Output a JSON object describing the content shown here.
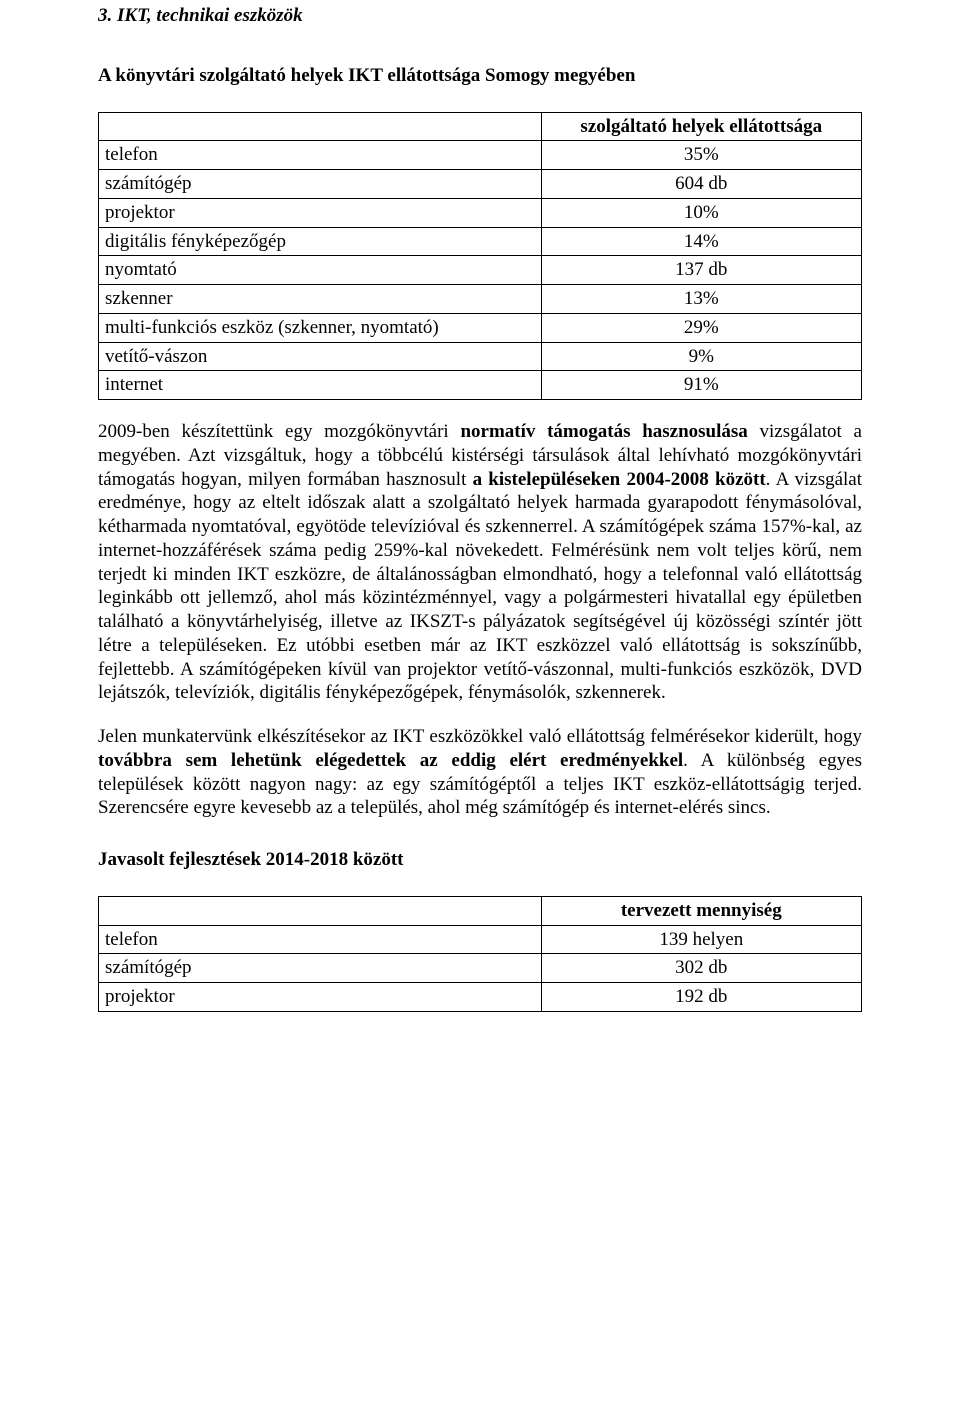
{
  "section": {
    "number": "3.",
    "title": "IKT, technikai eszközök"
  },
  "subhead1": "A könyvtári szolgáltató helyek IKT ellátottsága Somogy megyében",
  "table1": {
    "header_blank": "",
    "header_value": "szolgáltató helyek ellátottsága",
    "rows": [
      {
        "label": "telefon",
        "value": "35%"
      },
      {
        "label": "számítógép",
        "value": "604 db"
      },
      {
        "label": "projektor",
        "value": "10%"
      },
      {
        "label": "digitális fényképezőgép",
        "value": "14%"
      },
      {
        "label": "nyomtató",
        "value": "137 db"
      },
      {
        "label": "szkenner",
        "value": "13%"
      },
      {
        "label": "multi-funkciós eszköz (szkenner, nyomtató)",
        "value": "29%"
      },
      {
        "label": "vetítő-vászon",
        "value": "9%"
      },
      {
        "label": "internet",
        "value": "91%"
      }
    ]
  },
  "para1": {
    "t1": "2009-ben készítettünk egy mozgókönyvtári ",
    "b1": "normatív támogatás hasznosulása",
    "t2": " vizsgálatot a megyében. Azt vizsgáltuk, hogy a többcélú kistérségi társulások által lehívható mozgókönyvtári támogatás hogyan, milyen formában hasznosult ",
    "b2": "a kistelepüléseken 2004-2008 között",
    "t3": ". A vizsgálat eredménye, hogy az eltelt időszak alatt a szolgáltató helyek harmada gyarapodott fénymásolóval, kétharmada nyomtatóval, egyötöde televízióval és szkennerrel. A számítógépek száma 157%-kal, az internet-hozzáférések száma pedig 259%-kal növekedett. Felmérésünk nem volt teljes körű, nem terjedt ki minden IKT eszközre, de általánosságban elmondható, hogy a telefonnal való ellátottság leginkább ott jellemző, ahol más közintézménnyel, vagy a polgármesteri hivatallal egy épületben található a könyvtárhelyiség, illetve az IKSZT-s pályázatok segítségével új közösségi színtér jött létre a településeken. Ez utóbbi esetben már az IKT eszközzel való ellátottság is sokszínűbb, fejlettebb. A számítógépeken kívül van projektor vetítő-vászonnal, multi-funkciós eszközök, DVD lejátszók, televíziók, digitális fényképezőgépek, fénymásolók, szkennerek."
  },
  "para2": {
    "t1": "Jelen munkatervünk elkészítésekor az IKT eszközökkel való ellátottság felmérésekor kiderült, hogy ",
    "b1": "továbbra sem lehetünk elégedettek az eddig elért eredményekkel",
    "t2": ". A különbség egyes települések között nagyon nagy: az egy számítógéptől a teljes IKT eszköz-ellátottságig terjed. Szerencsére egyre kevesebb az a település, ahol még számítógép és internet-elérés sincs."
  },
  "subhead2": "Javasolt fejlesztések 2014-2018 között",
  "table2": {
    "header_blank": "",
    "header_value": "tervezett mennyiség",
    "rows": [
      {
        "label": "telefon",
        "value": "139 helyen"
      },
      {
        "label": "számítógép",
        "value": "302 db"
      },
      {
        "label": "projektor",
        "value": "192 db"
      }
    ]
  }
}
